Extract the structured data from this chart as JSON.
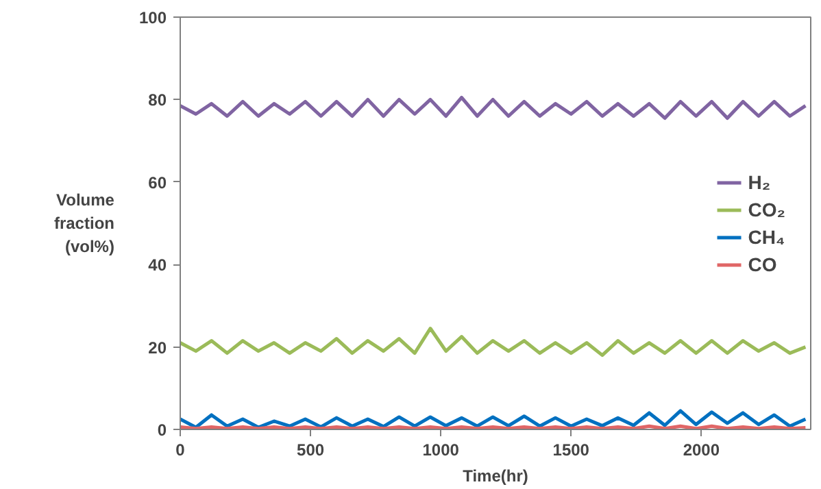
{
  "chart_data": {
    "type": "line",
    "xlabel": "Time(hr)",
    "ylabel": "Volume fraction (vol%)",
    "x": [
      0,
      60,
      120,
      180,
      240,
      300,
      360,
      420,
      480,
      540,
      600,
      660,
      720,
      780,
      840,
      900,
      960,
      1020,
      1080,
      1140,
      1200,
      1260,
      1320,
      1380,
      1440,
      1500,
      1560,
      1620,
      1680,
      1740,
      1800,
      1860,
      1920,
      1980,
      2040,
      2100,
      2160,
      2220,
      2280,
      2340,
      2400
    ],
    "series": [
      {
        "name": "H₂",
        "color": "#8064a2",
        "values": [
          78.5,
          76.5,
          79,
          76,
          79.5,
          76,
          79,
          76.5,
          79.5,
          76,
          79.5,
          76,
          80,
          76,
          80,
          76.5,
          80,
          76,
          80.5,
          76,
          80,
          76,
          79.5,
          76,
          79,
          76.5,
          79.5,
          76,
          79,
          76,
          79,
          75.5,
          79.5,
          76,
          79.5,
          75.5,
          79.5,
          76,
          79.5,
          76,
          78.5
        ]
      },
      {
        "name": "CO₂",
        "color": "#9bbb59",
        "values": [
          21,
          19,
          21.5,
          18.5,
          21.5,
          19,
          21,
          18.5,
          21,
          19,
          22,
          18.5,
          21.5,
          19,
          22,
          18.5,
          24.5,
          19,
          22.5,
          18.5,
          21.5,
          19,
          21.5,
          18.5,
          21,
          18.5,
          21,
          18,
          21.5,
          18.5,
          21,
          18.5,
          21.5,
          18.5,
          21.5,
          18.5,
          21.5,
          19,
          21,
          18.5,
          20
        ]
      },
      {
        "name": "CH₄",
        "color": "#0070c0",
        "values": [
          2.5,
          0.5,
          3.5,
          0.8,
          2.5,
          0.5,
          2,
          0.8,
          2.5,
          0.6,
          2.8,
          0.8,
          2.5,
          0.7,
          3,
          0.8,
          3,
          0.9,
          2.8,
          0.8,
          3,
          0.9,
          3.2,
          0.8,
          2.8,
          0.8,
          2.5,
          0.9,
          2.8,
          1,
          4,
          1,
          4.5,
          1.2,
          4.2,
          1.5,
          4,
          1.2,
          3.5,
          0.8,
          2.5
        ]
      },
      {
        "name": "CO",
        "color": "#e06666",
        "values": [
          0.6,
          0.2,
          0.6,
          0.2,
          0.6,
          0.2,
          0.6,
          0.2,
          0.6,
          0.2,
          0.6,
          0.2,
          0.6,
          0.2,
          0.6,
          0.2,
          0.6,
          0.2,
          0.6,
          0.2,
          0.6,
          0.2,
          0.6,
          0.2,
          0.6,
          0.2,
          0.6,
          0.2,
          0.6,
          0.2,
          0.8,
          0.2,
          0.8,
          0.2,
          0.8,
          0.2,
          0.6,
          0.2,
          0.6,
          0.2,
          0.4
        ]
      }
    ],
    "xlim": [
      0,
      2420
    ],
    "ylim": [
      0,
      100
    ],
    "xticks": [
      0,
      500,
      1000,
      1500,
      2000
    ],
    "yticks": [
      0,
      20,
      40,
      60,
      80,
      100
    ],
    "grid": false,
    "legend": "right",
    "marker": "none",
    "line_style": "solid"
  }
}
